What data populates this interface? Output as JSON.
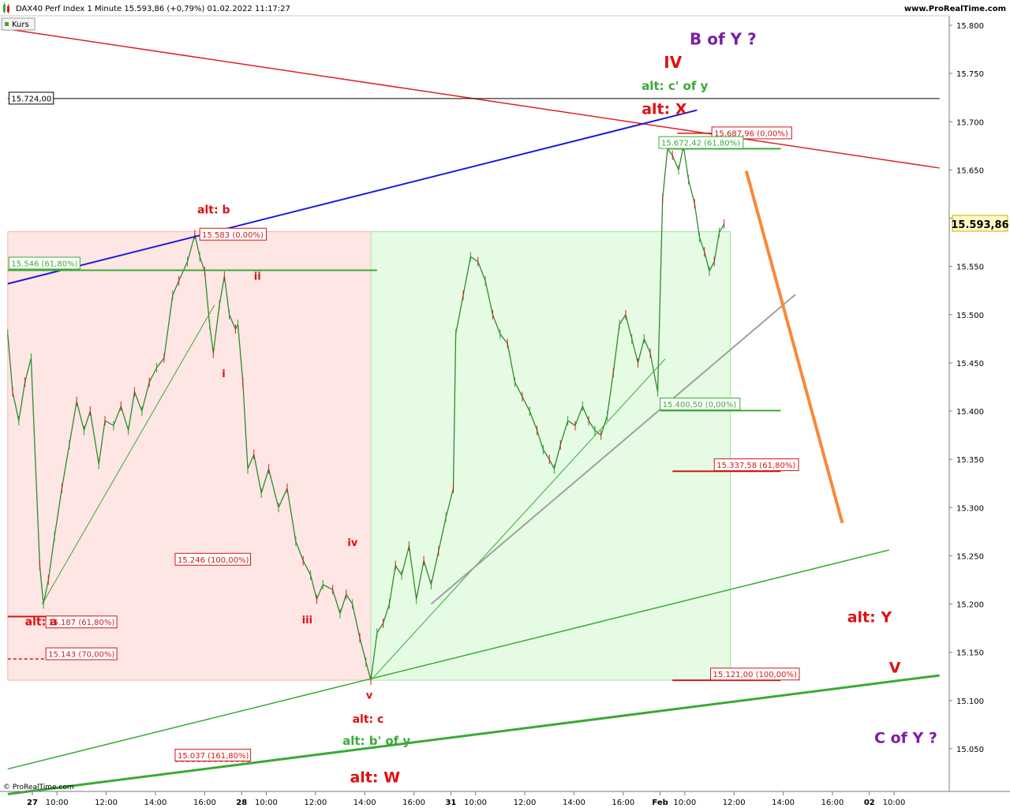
{
  "header": {
    "title": "DAX40 Perf Index 1 Minute 15.593,86 (+0,79%) 01.02.2022 11:17:27",
    "site": "www.ProRealTime.com",
    "series_tag": "Kurs",
    "footer": "© ProRealTime.com"
  },
  "chart_data": {
    "type": "line",
    "instrument": "DAX40 Perf Index",
    "interval": "1 Minute",
    "last_value": 15593.86,
    "last_value_label": "15.593,86",
    "ylim": [
      15000,
      15820
    ],
    "y_ticks": [
      15050,
      15100,
      15150,
      15200,
      15250,
      15300,
      15350,
      15400,
      15450,
      15500,
      15550,
      15600,
      15650,
      15700,
      15750,
      15800
    ],
    "y_tick_labels": [
      "15.050",
      "15.100",
      "15.150",
      "15.200",
      "15.250",
      "15.300",
      "15.350",
      "15.400",
      "15.450",
      "15.500",
      "15.550",
      "15.600",
      "15.650",
      "15.700",
      "15.750",
      "15.800"
    ],
    "x_ticks": [
      {
        "t": 0.0,
        "label": "27",
        "bold": true
      },
      {
        "t": 1.0,
        "label": "10:00"
      },
      {
        "t": 3.0,
        "label": "12:00"
      },
      {
        "t": 5.0,
        "label": "14:00"
      },
      {
        "t": 7.0,
        "label": "16:00"
      },
      {
        "t": 8.5,
        "label": "28",
        "bold": true
      },
      {
        "t": 9.5,
        "label": "10:00"
      },
      {
        "t": 11.5,
        "label": "12:00"
      },
      {
        "t": 13.5,
        "label": "14:00"
      },
      {
        "t": 15.5,
        "label": "16:00"
      },
      {
        "t": 17.0,
        "label": "31",
        "bold": true
      },
      {
        "t": 18.0,
        "label": "10:00"
      },
      {
        "t": 20.0,
        "label": "12:00"
      },
      {
        "t": 22.0,
        "label": "14:00"
      },
      {
        "t": 24.0,
        "label": "16:00"
      },
      {
        "t": 25.5,
        "label": "Feb",
        "bold": true
      },
      {
        "t": 26.5,
        "label": "10:00"
      },
      {
        "t": 28.5,
        "label": "12:00"
      },
      {
        "t": 30.5,
        "label": "14:00"
      },
      {
        "t": 32.5,
        "label": "16:00"
      },
      {
        "t": 34.0,
        "label": "02",
        "bold": true
      },
      {
        "t": 35.0,
        "label": "10:00"
      }
    ],
    "price_series": [
      [
        -1.0,
        15480
      ],
      [
        -0.8,
        15420
      ],
      [
        -0.55,
        15390
      ],
      [
        -0.3,
        15430
      ],
      [
        -0.05,
        15455
      ],
      [
        0.3,
        15240
      ],
      [
        0.45,
        15200
      ],
      [
        0.65,
        15225
      ],
      [
        0.9,
        15270
      ],
      [
        1.2,
        15320
      ],
      [
        1.5,
        15365
      ],
      [
        1.8,
        15410
      ],
      [
        2.1,
        15380
      ],
      [
        2.35,
        15400
      ],
      [
        2.7,
        15345
      ],
      [
        2.95,
        15390
      ],
      [
        3.3,
        15385
      ],
      [
        3.6,
        15405
      ],
      [
        3.9,
        15380
      ],
      [
        4.15,
        15420
      ],
      [
        4.45,
        15400
      ],
      [
        4.75,
        15430
      ],
      [
        5.05,
        15445
      ],
      [
        5.35,
        15455
      ],
      [
        5.7,
        15520
      ],
      [
        5.95,
        15535
      ],
      [
        6.3,
        15555
      ],
      [
        6.6,
        15583
      ],
      [
        6.8,
        15560
      ],
      [
        7.0,
        15545
      ],
      [
        7.2,
        15490
      ],
      [
        7.35,
        15460
      ],
      [
        7.6,
        15510
      ],
      [
        7.8,
        15540
      ],
      [
        8.0,
        15500
      ],
      [
        8.25,
        15485
      ],
      [
        8.35,
        15490
      ],
      [
        8.55,
        15430
      ],
      [
        8.75,
        15340
      ],
      [
        9.0,
        15355
      ],
      [
        9.3,
        15315
      ],
      [
        9.6,
        15340
      ],
      [
        10.0,
        15300
      ],
      [
        10.35,
        15320
      ],
      [
        10.7,
        15265
      ],
      [
        11.0,
        15245
      ],
      [
        11.3,
        15230
      ],
      [
        11.55,
        15205
      ],
      [
        11.8,
        15220
      ],
      [
        12.2,
        15215
      ],
      [
        12.5,
        15190
      ],
      [
        12.75,
        15210
      ],
      [
        13.0,
        15200
      ],
      [
        13.3,
        15165
      ],
      [
        13.55,
        15140
      ],
      [
        13.75,
        15121
      ],
      [
        14.0,
        15170
      ],
      [
        14.25,
        15180
      ],
      [
        14.5,
        15200
      ],
      [
        14.75,
        15240
      ],
      [
        15.0,
        15230
      ],
      [
        15.3,
        15260
      ],
      [
        15.6,
        15205
      ],
      [
        15.9,
        15245
      ],
      [
        16.2,
        15220
      ],
      [
        16.5,
        15255
      ],
      [
        16.8,
        15290
      ],
      [
        17.1,
        15320
      ],
      [
        17.2,
        15480
      ],
      [
        17.5,
        15520
      ],
      [
        17.8,
        15560
      ],
      [
        18.1,
        15555
      ],
      [
        18.4,
        15535
      ],
      [
        18.7,
        15500
      ],
      [
        19.0,
        15480
      ],
      [
        19.3,
        15470
      ],
      [
        19.6,
        15430
      ],
      [
        19.9,
        15415
      ],
      [
        20.2,
        15400
      ],
      [
        20.5,
        15380
      ],
      [
        20.75,
        15360
      ],
      [
        21.0,
        15350
      ],
      [
        21.2,
        15340
      ],
      [
        21.45,
        15365
      ],
      [
        21.75,
        15390
      ],
      [
        22.05,
        15385
      ],
      [
        22.35,
        15405
      ],
      [
        22.6,
        15390
      ],
      [
        22.85,
        15380
      ],
      [
        23.1,
        15375
      ],
      [
        23.35,
        15395
      ],
      [
        23.6,
        15440
      ],
      [
        23.85,
        15490
      ],
      [
        24.1,
        15500
      ],
      [
        24.35,
        15475
      ],
      [
        24.6,
        15450
      ],
      [
        24.85,
        15475
      ],
      [
        25.1,
        15460
      ],
      [
        25.4,
        15420
      ],
      [
        25.6,
        15620
      ],
      [
        25.8,
        15672
      ],
      [
        26.0,
        15665
      ],
      [
        26.25,
        15650
      ],
      [
        26.45,
        15675
      ],
      [
        26.65,
        15640
      ],
      [
        26.9,
        15615
      ],
      [
        27.1,
        15580
      ],
      [
        27.3,
        15565
      ],
      [
        27.5,
        15545
      ],
      [
        27.7,
        15555
      ],
      [
        27.9,
        15585
      ],
      [
        28.1,
        15594
      ]
    ],
    "trend_lines": [
      {
        "name": "red-channel-line",
        "color": "#e02020",
        "width": 1.5,
        "from": [
          -1.0,
          15796
        ],
        "to": [
          36.85,
          15652
        ]
      },
      {
        "name": "blue-trend-line",
        "color": "#1a1adc",
        "width": 2,
        "from": [
          -1.0,
          15532
        ],
        "to": [
          27.0,
          15712
        ]
      },
      {
        "name": "green-upper-support",
        "color": "#3aaa35",
        "width": 1.5,
        "from": [
          -1.0,
          15029
        ],
        "to": [
          34.8,
          15256
        ]
      },
      {
        "name": "green-lower-support",
        "color": "#3aaa35",
        "width": 3,
        "from": [
          -1.0,
          15003
        ],
        "to": [
          36.85,
          15126
        ]
      },
      {
        "name": "green-trend-1",
        "color": "#3aaa35",
        "width": 1,
        "from": [
          0.4,
          15200
        ],
        "to": [
          7.4,
          15510
        ]
      },
      {
        "name": "green-trend-2",
        "color": "#3aaa35",
        "width": 1,
        "from": [
          13.75,
          15121
        ],
        "to": [
          25.7,
          15454
        ]
      },
      {
        "name": "grey-trend-line",
        "color": "#a0a0a0",
        "width": 2,
        "from": [
          16.2,
          15200
        ],
        "to": [
          31.0,
          15521
        ]
      },
      {
        "name": "orange-projection",
        "color": "#f58a3c",
        "width": 4,
        "from": [
          29.0,
          15649
        ],
        "to": [
          32.9,
          15284
        ]
      }
    ],
    "zones": [
      {
        "name": "red-zone",
        "fill": "#fde6e3",
        "stroke": "#f3b8b0",
        "t0": -1.0,
        "t1": 13.75,
        "y0": 15121,
        "y1": 15586
      },
      {
        "name": "green-zone",
        "fill": "#e6fbe3",
        "stroke": "#a8e2a0",
        "t0": 13.75,
        "t1": 28.35,
        "y0": 15121,
        "y1": 15586
      }
    ],
    "level_lines": [
      {
        "name": "level-15724",
        "color": "#000000",
        "width": 1,
        "t0": -1.0,
        "t1": 36.85,
        "y": 15724,
        "dash": false
      },
      {
        "name": "level-15546",
        "color": "#3aaa35",
        "width": 2,
        "t0": -1.0,
        "t1": 14.0,
        "y": 15546,
        "dash": false
      },
      {
        "name": "level-15187",
        "color": "#d01818",
        "width": 2,
        "t0": -1.0,
        "t1": 2.6,
        "y": 15187,
        "dash": false
      },
      {
        "name": "level-15143",
        "color": "#d01818",
        "width": 1.5,
        "t0": -1.0,
        "t1": 2.6,
        "y": 15143,
        "dash": true
      },
      {
        "name": "level-15037",
        "color": "#d01818",
        "width": 1.5,
        "t0": 5.8,
        "t1": 8.9,
        "y": 15037,
        "dash": true
      },
      {
        "name": "level-15672",
        "color": "#3aaa35",
        "width": 2,
        "t0": 25.8,
        "t1": 30.4,
        "y": 15672,
        "dash": false
      },
      {
        "name": "level-15400",
        "color": "#3aaa35",
        "width": 2,
        "t0": 25.5,
        "t1": 30.4,
        "y": 15400.5,
        "dash": false
      },
      {
        "name": "level-15337",
        "color": "#d01818",
        "width": 2,
        "t0": 26.0,
        "t1": 30.4,
        "y": 15337.58,
        "dash": false
      },
      {
        "name": "level-15121",
        "color": "#d01818",
        "width": 2,
        "t0": 26.0,
        "t1": 30.4,
        "y": 15121,
        "dash": false
      },
      {
        "name": "level-15688",
        "color": "#d01818",
        "width": 1.5,
        "t0": 26.2,
        "t1": 27.8,
        "y": 15688,
        "dash": false
      }
    ],
    "level_tags": [
      {
        "name": "tag-15724",
        "text": "15.724,00",
        "color": "#000000",
        "t": -0.95,
        "y": 15724
      },
      {
        "name": "tag-15583",
        "text": "15.583 (0,00%)",
        "color": "#d01818",
        "t": 6.8,
        "y": 15583
      },
      {
        "name": "tag-15546",
        "text": "15.546 (61,80%)",
        "color": "#3aaa35",
        "t": -0.95,
        "y": 15553
      },
      {
        "name": "tag-15246",
        "text": "15.246 (100,00%)",
        "color": "#d01818",
        "t": 5.8,
        "y": 15246
      },
      {
        "name": "tag-15187",
        "text": "15.187 (61,80%)",
        "color": "#d01818",
        "t": 0.55,
        "y": 15181
      },
      {
        "name": "tag-15143",
        "text": "15.143 (70,00%)",
        "color": "#d01818",
        "t": 0.55,
        "y": 15148
      },
      {
        "name": "tag-15037",
        "text": "15.037 (161,80%)",
        "color": "#d01818",
        "t": 5.8,
        "y": 15043
      },
      {
        "name": "tag-15688",
        "text": "15.687,96 (0,00%)",
        "color": "#d01818",
        "t": 27.6,
        "y": 15688
      },
      {
        "name": "tag-15672",
        "text": "15.672,42 (61,80%)",
        "color": "#3aaa35",
        "t": 25.45,
        "y": 15678
      },
      {
        "name": "tag-15400",
        "text": "15.400,50 (0,00%)",
        "color": "#3aaa35",
        "t": 25.5,
        "y": 15407
      },
      {
        "name": "tag-15337",
        "text": "15.337,58 (61,80%)",
        "color": "#d01818",
        "t": 27.7,
        "y": 15344
      },
      {
        "name": "tag-15121",
        "text": "15.121,00 (100,00%)",
        "color": "#d01818",
        "t": 27.55,
        "y": 15127
      }
    ],
    "annotations": [
      {
        "name": "label-b-of-y",
        "text": "B of Y ?",
        "color": "#7b1fa2",
        "size": 20,
        "t": 26.7,
        "y": 15780
      },
      {
        "name": "label-iv",
        "text": "IV",
        "color": "#e01010",
        "size": 20,
        "t": 25.65,
        "y": 15756
      },
      {
        "name": "label-alt-c-prime-of-y",
        "text": "alt: c' of y",
        "color": "#3aaa35",
        "size": 15,
        "t": 24.75,
        "y": 15733
      },
      {
        "name": "label-alt-x",
        "text": "alt: X",
        "color": "#e01010",
        "size": 19,
        "t": 24.75,
        "y": 15708
      },
      {
        "name": "label-alt-b",
        "text": "alt: b",
        "color": "#e01010",
        "size": 14,
        "t": 6.7,
        "y": 15605
      },
      {
        "name": "label-ii",
        "text": "ii",
        "color": "#e01010",
        "size": 13,
        "t": 9.0,
        "y": 15536
      },
      {
        "name": "label-i",
        "text": "i",
        "color": "#e01010",
        "size": 13,
        "t": 7.7,
        "y": 15435
      },
      {
        "name": "label-iv-small",
        "text": "iv",
        "color": "#e01010",
        "size": 13,
        "t": 12.8,
        "y": 15260
      },
      {
        "name": "label-iii",
        "text": "iii",
        "color": "#e01010",
        "size": 13,
        "t": 10.95,
        "y": 15180
      },
      {
        "name": "label-alt-a",
        "text": "alt: a",
        "color": "#e01010",
        "size": 14,
        "t": -0.3,
        "y": 15178
      },
      {
        "name": "label-v-small",
        "text": "v",
        "color": "#e01010",
        "size": 13,
        "t": 13.55,
        "y": 15102
      },
      {
        "name": "label-alt-c",
        "text": "alt: c",
        "color": "#e01010",
        "size": 14,
        "t": 13.0,
        "y": 15077
      },
      {
        "name": "label-alt-b-prime-of-y",
        "text": "alt: b' of y",
        "color": "#3aaa35",
        "size": 15,
        "t": 12.6,
        "y": 15054
      },
      {
        "name": "label-alt-w",
        "text": "alt: W",
        "color": "#e01010",
        "size": 19,
        "t": 12.9,
        "y": 15015
      },
      {
        "name": "label-alt-y",
        "text": "alt: Y",
        "color": "#e01010",
        "size": 19,
        "t": 33.1,
        "y": 15181
      },
      {
        "name": "label-v-big",
        "text": "V",
        "color": "#e01010",
        "size": 19,
        "t": 34.8,
        "y": 15129
      },
      {
        "name": "label-c-of-y",
        "text": "C of Y ?",
        "color": "#7b1fa2",
        "size": 19,
        "t": 34.2,
        "y": 15056
      }
    ]
  }
}
